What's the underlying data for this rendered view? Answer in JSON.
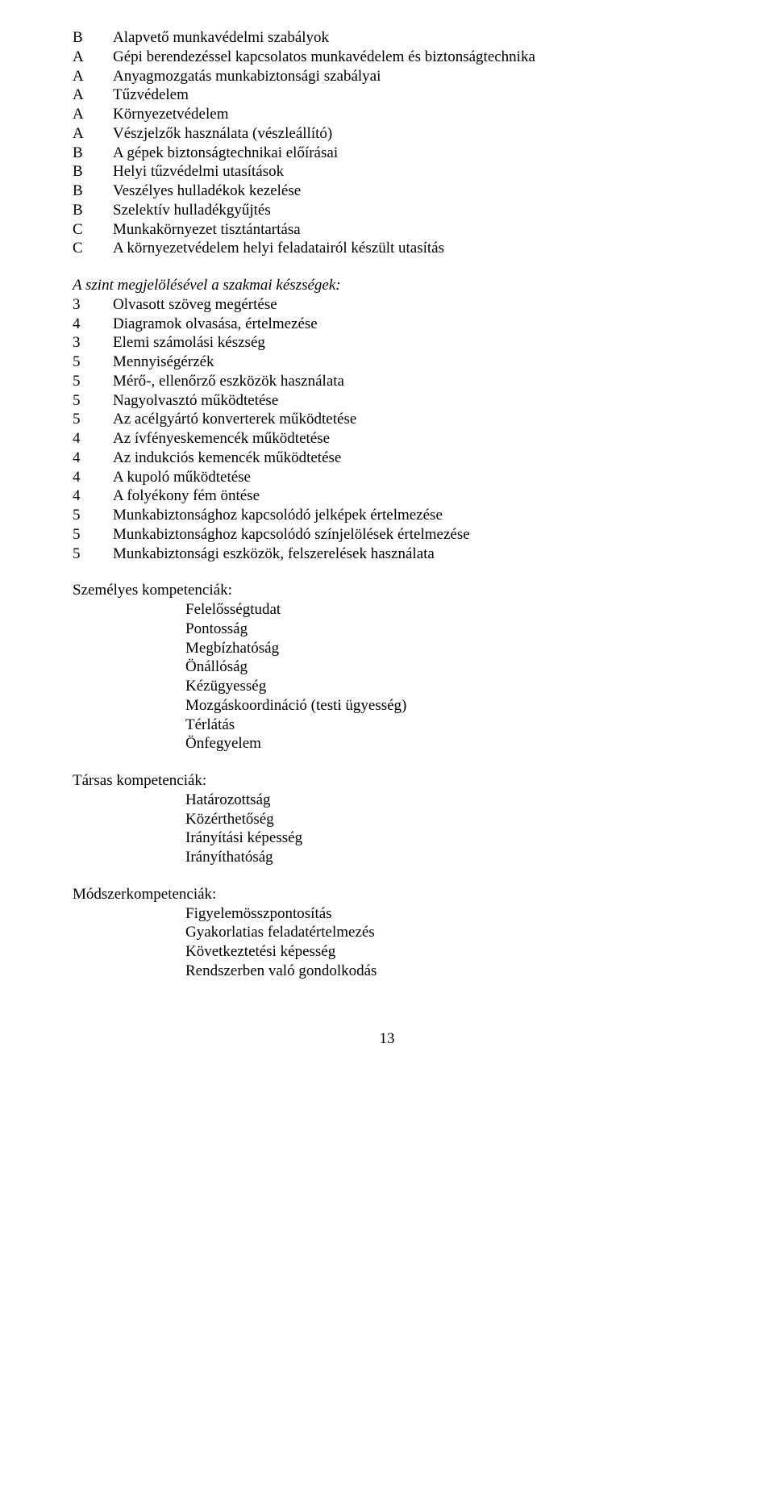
{
  "font": {
    "family": "Times New Roman",
    "size_pt": 12,
    "color": "#000000"
  },
  "background_color": "#ffffff",
  "block1": {
    "rows": [
      {
        "level": "B",
        "text": "Alapvető munkavédelmi szabályok"
      },
      {
        "level": "A",
        "text": "Gépi berendezéssel kapcsolatos munkavédelem és biztonságtechnika"
      },
      {
        "level": "A",
        "text": "Anyagmozgatás munkabiztonsági szabályai"
      },
      {
        "level": "A",
        "text": "Tűzvédelem"
      },
      {
        "level": "A",
        "text": "Környezetvédelem"
      },
      {
        "level": "A",
        "text": "Vészjelzők használata (vészleállító)"
      },
      {
        "level": "B",
        "text": "A gépek biztonságtechnikai előírásai"
      },
      {
        "level": "B",
        "text": "Helyi tűzvédelmi utasítások"
      },
      {
        "level": "B",
        "text": "Veszélyes hulladékok kezelése"
      },
      {
        "level": "B",
        "text": "Szelektív hulladékgyűjtés"
      },
      {
        "level": "C",
        "text": "Munkakörnyezet tisztántartása"
      },
      {
        "level": "C",
        "text": "A környezetvédelem helyi feladatairól készült utasítás"
      }
    ]
  },
  "block2_heading": "A szint megjelölésével a szakmai készségek:",
  "block2": {
    "rows": [
      {
        "level": "3",
        "text": "Olvasott szöveg megértése"
      },
      {
        "level": "4",
        "text": "Diagramok olvasása, értelmezése"
      },
      {
        "level": "3",
        "text": "Elemi számolási készség"
      },
      {
        "level": "5",
        "text": "Mennyiségérzék"
      },
      {
        "level": "5",
        "text": "Mérő-, ellenőrző eszközök használata"
      },
      {
        "level": "5",
        "text": "Nagyolvasztó működtetése"
      },
      {
        "level": "5",
        "text": "Az acélgyártó konverterek működtetése"
      },
      {
        "level": "4",
        "text": "Az ívfényeskemencék működtetése"
      },
      {
        "level": "4",
        "text": "Az indukciós kemencék működtetése"
      },
      {
        "level": "4",
        "text": "A kupoló működtetése"
      },
      {
        "level": "4",
        "text": "A folyékony fém öntése"
      },
      {
        "level": "5",
        "text": "Munkabiztonsághoz kapcsolódó jelképek értelmezése"
      },
      {
        "level": "5",
        "text": "Munkabiztonsághoz kapcsolódó színjelölések értelmezése"
      },
      {
        "level": "5",
        "text": "Munkabiztonsági eszközök, felszerelések használata"
      }
    ]
  },
  "section_personal": {
    "heading": "Személyes kompetenciák:",
    "items": [
      "Felelősségtudat",
      "Pontosság",
      "Megbízhatóság",
      "Önállóság",
      "Kézügyesség",
      "Mozgáskoordináció (testi ügyesség)",
      "Térlátás",
      "Önfegyelem"
    ]
  },
  "section_social": {
    "heading": "Társas kompetenciák:",
    "items": [
      "Határozottság",
      "Közérthetőség",
      "Irányítási képesség",
      "Irányíthatóság"
    ]
  },
  "section_method": {
    "heading": "Módszerkompetenciák:",
    "items": [
      "Figyelemösszpontosítás",
      "Gyakorlatias feladatértelmezés",
      "Következtetési képesség",
      "Rendszerben való gondolkodás"
    ]
  },
  "page_number": "13"
}
